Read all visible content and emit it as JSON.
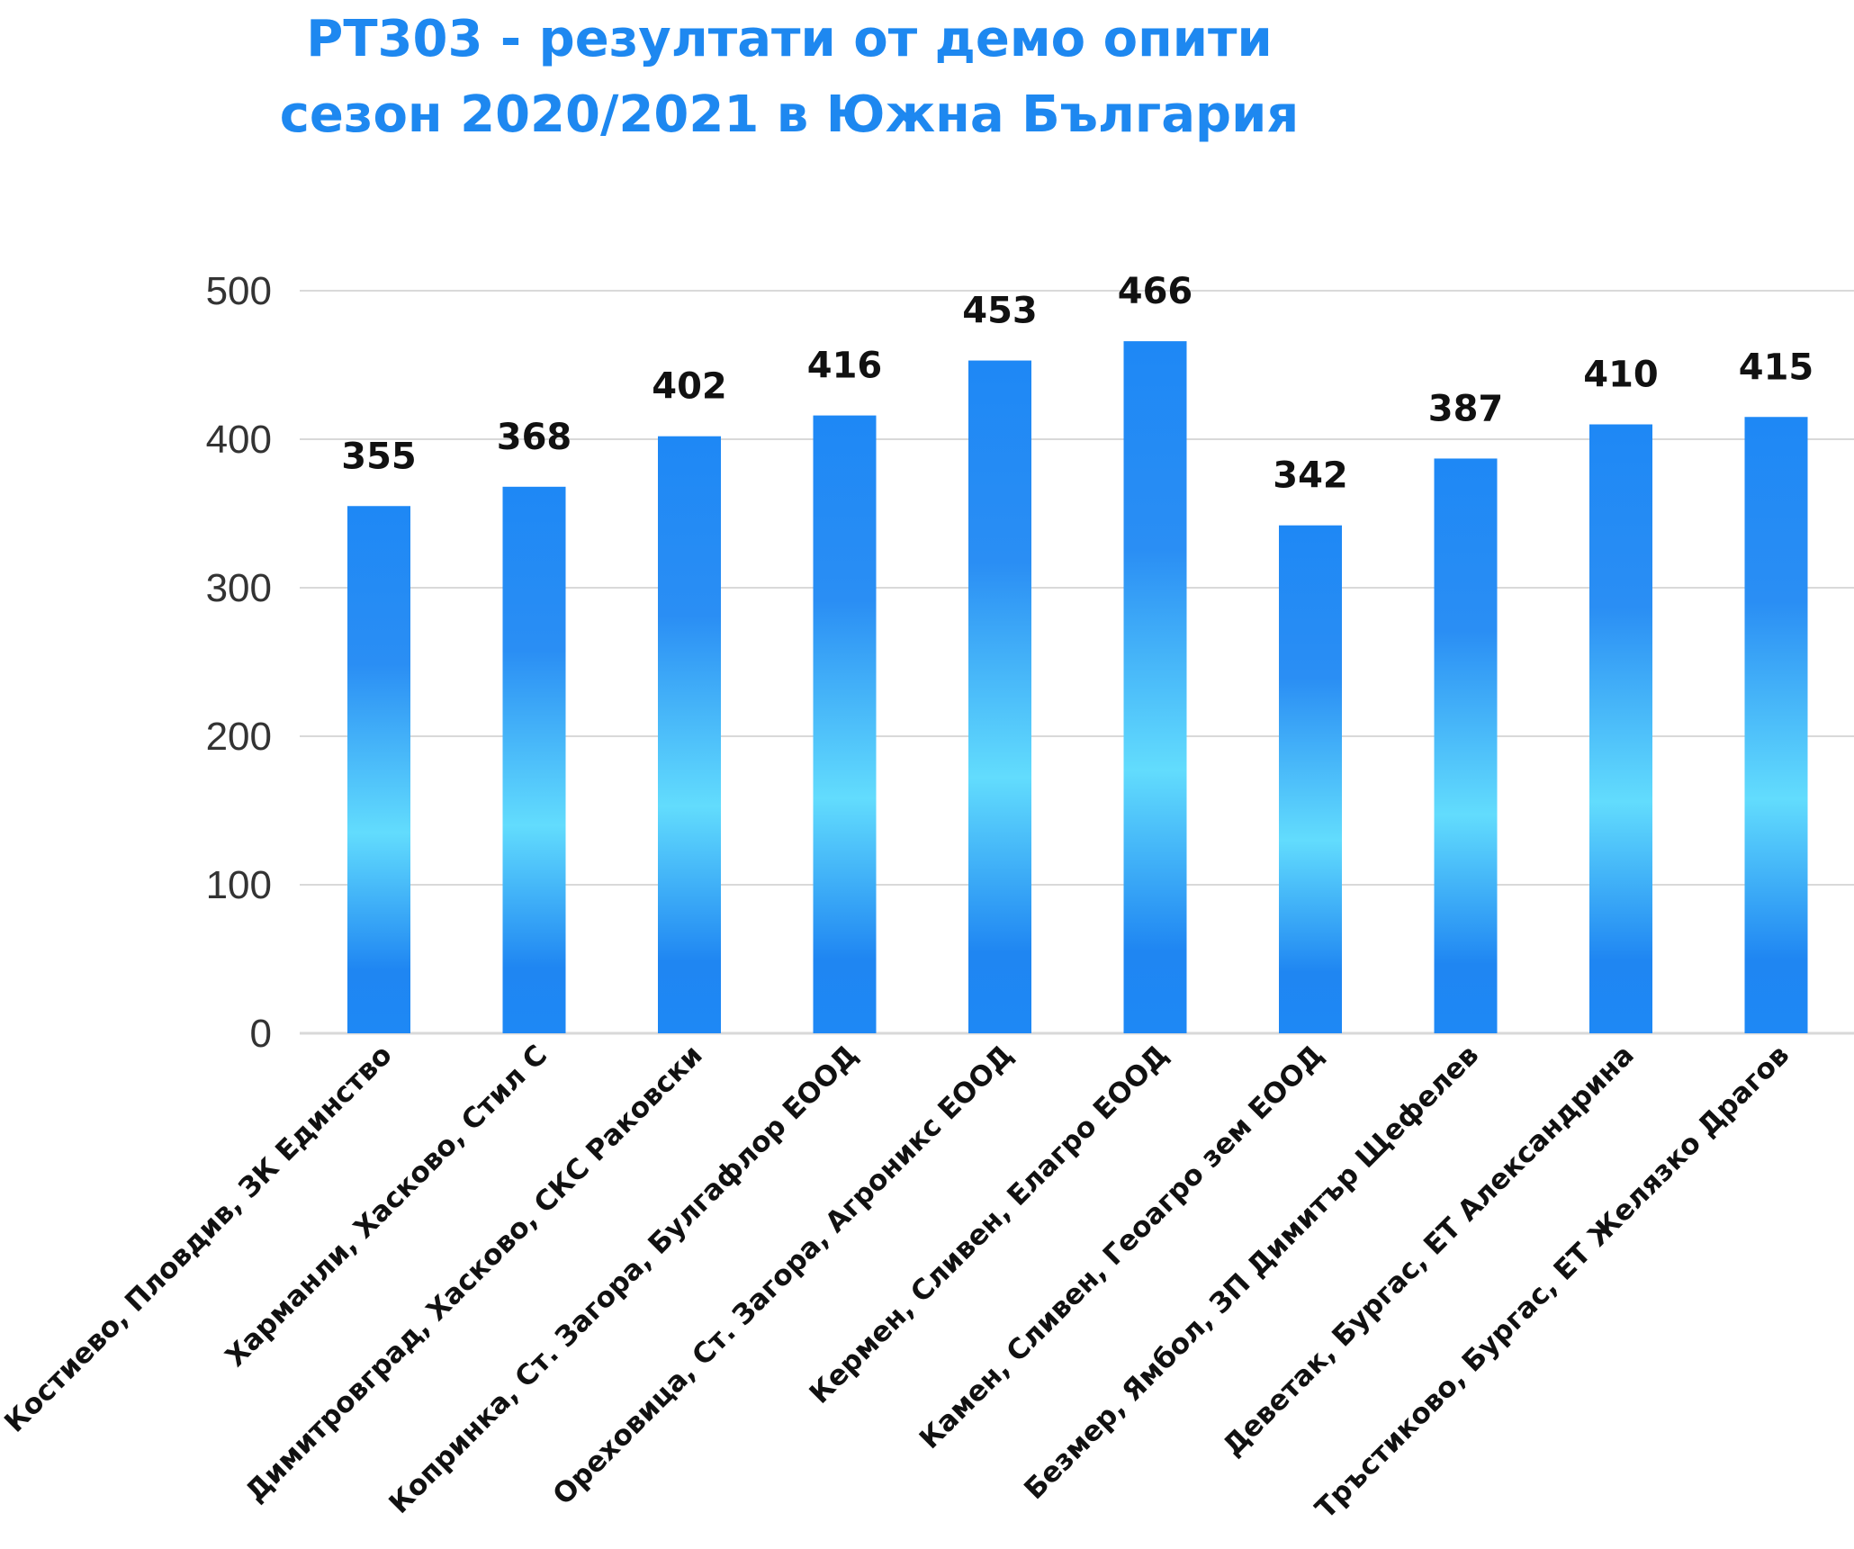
{
  "title_line1": "PT303 - резултати от демо опити",
  "title_line2": "сезон 2020/2021 в Южна България",
  "colors": {
    "title": "#1e88f0",
    "bar_dark": "#1e88f5",
    "bar_light": "#62dcfd",
    "grid": "#d9d9d9"
  },
  "chart_data": {
    "type": "bar",
    "title": "PT303 - резултати от демо опити сезон 2020/2021 в Южна България",
    "xlabel": "",
    "ylabel": "",
    "ylim": [
      0,
      500
    ],
    "yticks": [
      0,
      100,
      200,
      300,
      400,
      500
    ],
    "grid": true,
    "categories": [
      "Костиево, Пловдив, ЗК Единство",
      "Харманли, Хасково, Стил С",
      "Димитровград, Хасково, СКС Раковски",
      "Копринка, Ст. Загора, Булгафлор ЕООД",
      "Ореховица, Ст. Загора, Агроникс ЕООД",
      "Кермен, Сливен, Елагро ЕООД",
      "Камен, Сливен, Геоагро зем ЕООД",
      "Безмер, Ямбол, ЗП Димитър Щефелев",
      "Деветак, Бургас, ЕТ Александрина",
      "Тръстиково, Бургас, ЕТ Желязко Драгов"
    ],
    "values": [
      355,
      368,
      402,
      416,
      453,
      466,
      342,
      387,
      410,
      415
    ]
  }
}
